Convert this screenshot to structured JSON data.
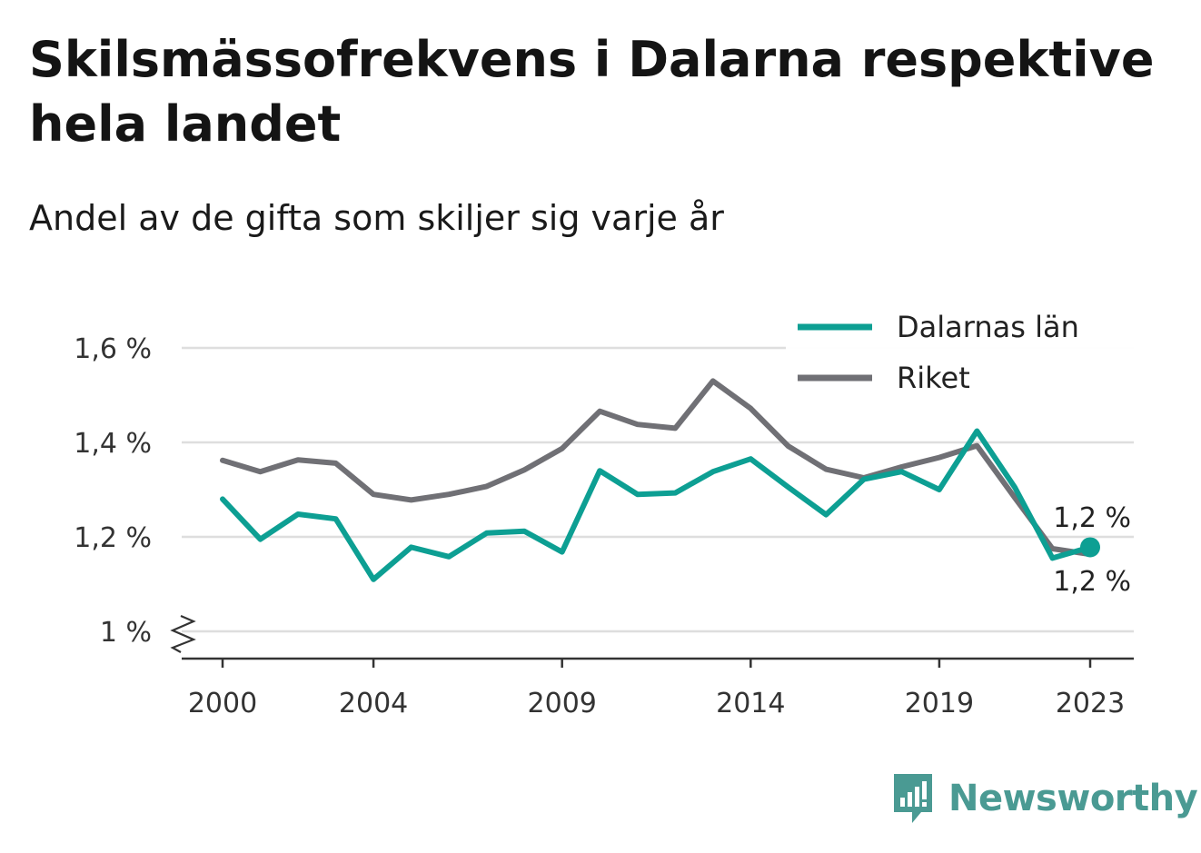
{
  "title": "Skilsmässofrekvens i Dalarna respektive hela landet",
  "subtitle": "Andel av de gifta som skiljer sig varje år",
  "brand": {
    "name": "Newsworthy",
    "icon": "newsworthy-logo-icon",
    "color": "#4a9a93"
  },
  "chart_data": {
    "type": "line",
    "x": [
      2000,
      2001,
      2002,
      2003,
      2004,
      2005,
      2006,
      2007,
      2008,
      2009,
      2010,
      2011,
      2012,
      2013,
      2014,
      2015,
      2016,
      2017,
      2018,
      2019,
      2020,
      2021,
      2022,
      2023
    ],
    "x_ticks": [
      2000,
      2004,
      2009,
      2014,
      2019,
      2023
    ],
    "y_ticks": [
      {
        "value": 1.0,
        "label": "1 %"
      },
      {
        "value": 1.2,
        "label": "1,2 %"
      },
      {
        "value": 1.4,
        "label": "1,4 %"
      },
      {
        "value": 1.6,
        "label": "1,6 %"
      }
    ],
    "ylim": [
      1.0,
      1.6
    ],
    "y_axis_break": true,
    "grid": true,
    "legend_position": "top-right",
    "series": [
      {
        "name": "Dalarnas län",
        "color": "#0d9f93",
        "values": [
          1.28,
          1.195,
          1.248,
          1.238,
          1.11,
          1.178,
          1.158,
          1.208,
          1.212,
          1.168,
          1.34,
          1.29,
          1.293,
          1.338,
          1.365,
          1.305,
          1.247,
          1.322,
          1.338,
          1.3,
          1.424,
          1.305,
          1.155,
          1.178
        ],
        "end_label": "1,2 %"
      },
      {
        "name": "Riket",
        "color": "#707075",
        "values": [
          1.362,
          1.338,
          1.363,
          1.356,
          1.29,
          1.278,
          1.29,
          1.307,
          1.342,
          1.387,
          1.466,
          1.438,
          1.43,
          1.53,
          1.472,
          1.392,
          1.343,
          1.325,
          1.348,
          1.368,
          1.393,
          1.283,
          1.175,
          1.163
        ],
        "end_label": "1,2 %"
      }
    ]
  }
}
